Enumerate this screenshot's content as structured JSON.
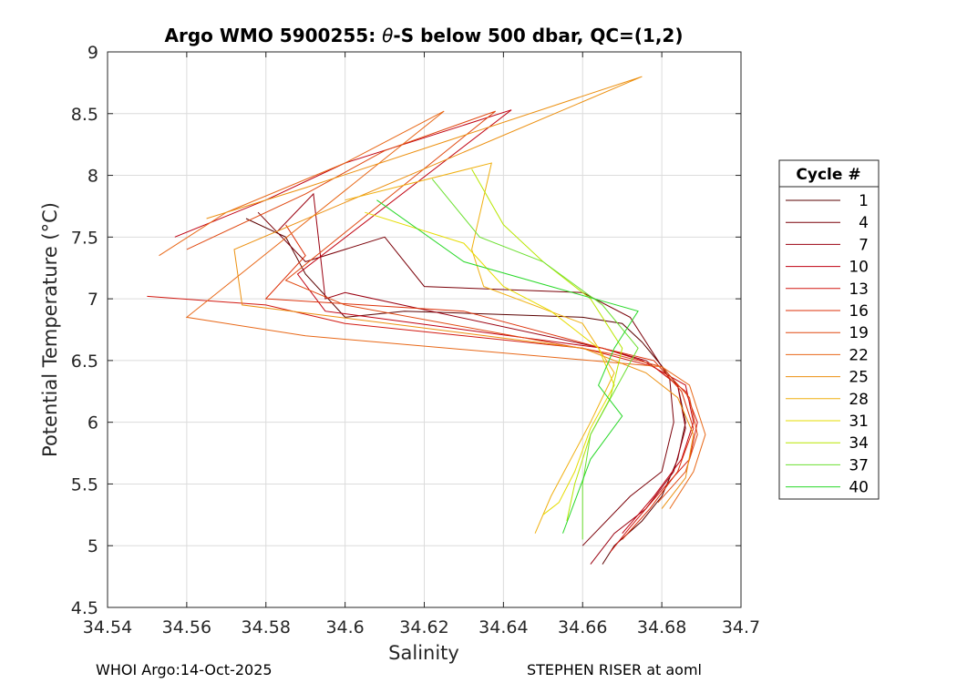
{
  "chart_data": {
    "type": "line",
    "title_prefix": "Argo WMO 5900255: ",
    "title_theta": "θ",
    "title_suffix": "-S below 500 dbar,  QC=(1,2)",
    "xlabel": "Salinity",
    "ylabel": "Potential Temperature (°C)",
    "xlim": [
      34.54,
      34.7
    ],
    "ylim": [
      4.5,
      9.0
    ],
    "xticks": [
      "34.54",
      "34.56",
      "34.58",
      "34.6",
      "34.62",
      "34.64",
      "34.66",
      "34.68",
      "34.7"
    ],
    "yticks": [
      "4.5",
      "5",
      "5.5",
      "6",
      "6.5",
      "7",
      "7.5",
      "8",
      "8.5",
      "9"
    ],
    "grid": true,
    "legend_title": "Cycle #",
    "legend_position": "right",
    "series": [
      {
        "name": "1",
        "color": "#5a0000",
        "x": [
          34.575,
          34.585,
          34.59,
          34.6,
          34.615,
          34.66,
          34.67,
          34.675,
          34.684,
          34.686,
          34.684,
          34.68,
          34.675,
          34.668,
          34.665
        ],
        "y": [
          7.65,
          7.5,
          7.2,
          6.85,
          6.9,
          6.85,
          6.8,
          6.65,
          6.3,
          6.0,
          5.7,
          5.4,
          5.2,
          5.0,
          4.85
        ]
      },
      {
        "name": "4",
        "color": "#7a0008",
        "x": [
          34.578,
          34.59,
          34.61,
          34.62,
          34.66,
          34.672,
          34.677,
          34.682,
          34.683,
          34.68,
          34.672,
          34.66
        ],
        "y": [
          7.7,
          7.3,
          7.5,
          7.1,
          7.05,
          6.85,
          6.6,
          6.35,
          6.0,
          5.6,
          5.4,
          5.0
        ]
      },
      {
        "name": "7",
        "color": "#9a0010",
        "x": [
          34.583,
          34.592,
          34.595,
          34.6,
          34.665,
          34.676,
          34.684,
          34.686,
          34.683,
          34.676,
          34.668,
          34.662
        ],
        "y": [
          7.55,
          7.85,
          7.0,
          7.05,
          6.6,
          6.5,
          6.3,
          5.95,
          5.6,
          5.3,
          5.1,
          4.85
        ]
      },
      {
        "name": "10",
        "color": "#c00010",
        "x": [
          34.557,
          34.58,
          34.6,
          34.642,
          34.588,
          34.595,
          34.665,
          34.675,
          34.686,
          34.688,
          34.685,
          34.678,
          34.67
        ],
        "y": [
          7.5,
          7.8,
          8.1,
          8.53,
          7.2,
          6.9,
          6.6,
          6.5,
          6.3,
          6.0,
          5.7,
          5.4,
          5.1
        ]
      },
      {
        "name": "13",
        "color": "#d21810",
        "x": [
          34.55,
          34.58,
          34.6,
          34.66,
          34.678,
          34.686,
          34.689,
          34.687,
          34.68,
          34.672,
          34.667
        ],
        "y": [
          7.02,
          6.95,
          6.8,
          6.6,
          6.45,
          6.25,
          6.0,
          5.7,
          5.45,
          5.15,
          4.95
        ]
      },
      {
        "name": "16",
        "color": "#dc3008",
        "x": [
          34.585,
          34.59,
          34.58,
          34.63,
          34.665,
          34.678,
          34.685,
          34.688,
          34.684,
          34.677,
          34.67
        ],
        "y": [
          7.6,
          7.35,
          7.0,
          6.9,
          6.6,
          6.5,
          6.25,
          5.95,
          5.6,
          5.3,
          5.05
        ]
      },
      {
        "name": "19",
        "color": "#e04810",
        "x": [
          34.56,
          34.59,
          34.61,
          34.638,
          34.585,
          34.6,
          34.668,
          34.68,
          34.687,
          34.689,
          34.686,
          34.679
        ],
        "y": [
          7.4,
          7.85,
          8.2,
          8.52,
          7.15,
          6.95,
          6.55,
          6.45,
          6.2,
          5.9,
          5.6,
          5.35
        ]
      },
      {
        "name": "22",
        "color": "#e86818",
        "x": [
          34.553,
          34.57,
          34.6,
          34.625,
          34.56,
          34.59,
          34.68,
          34.687,
          34.691,
          34.688,
          34.682
        ],
        "y": [
          7.35,
          7.7,
          8.1,
          8.52,
          6.85,
          6.7,
          6.45,
          6.3,
          5.9,
          5.6,
          5.3
        ]
      },
      {
        "name": "25",
        "color": "#ec9010",
        "x": [
          34.565,
          34.59,
          34.675,
          34.572,
          34.574,
          34.66,
          34.676,
          34.684,
          34.688,
          34.686,
          34.68
        ],
        "y": [
          7.65,
          7.9,
          8.8,
          7.4,
          6.95,
          6.6,
          6.4,
          6.2,
          5.9,
          5.55,
          5.3
        ]
      },
      {
        "name": "28",
        "color": "#f0b010",
        "x": [
          34.6,
          34.637,
          34.632,
          34.635,
          34.66,
          34.668,
          34.662,
          34.657,
          34.652,
          34.648
        ],
        "y": [
          7.8,
          8.1,
          7.4,
          7.1,
          6.8,
          6.4,
          6.0,
          5.7,
          5.4,
          5.1
        ]
      },
      {
        "name": "31",
        "color": "#e6dc00",
        "x": [
          34.605,
          34.63,
          34.64,
          34.652,
          34.664,
          34.668,
          34.662,
          34.658,
          34.654,
          34.65
        ],
        "y": [
          7.7,
          7.45,
          7.1,
          6.9,
          6.6,
          6.3,
          5.95,
          5.6,
          5.35,
          5.25
        ]
      },
      {
        "name": "34",
        "color": "#b8e600",
        "x": [
          34.632,
          34.64,
          34.65,
          34.662,
          34.67,
          34.667,
          34.662,
          34.658,
          34.656
        ],
        "y": [
          8.05,
          7.6,
          7.3,
          7.0,
          6.6,
          6.2,
          5.9,
          5.5,
          5.2
        ]
      },
      {
        "name": "37",
        "color": "#6ce030",
        "x": [
          34.622,
          34.634,
          34.65,
          34.665,
          34.674,
          34.668,
          34.662,
          34.66,
          34.66
        ],
        "y": [
          7.97,
          7.5,
          7.3,
          6.95,
          6.6,
          6.25,
          5.9,
          5.5,
          5.05
        ]
      },
      {
        "name": "40",
        "color": "#28d828",
        "x": [
          34.608,
          34.63,
          34.652,
          34.674,
          34.668,
          34.664,
          34.67,
          34.662,
          34.655
        ],
        "y": [
          7.8,
          7.3,
          7.1,
          6.9,
          6.6,
          6.3,
          6.05,
          5.7,
          5.1
        ]
      }
    ]
  },
  "footer_left": "WHOI Argo:14-Oct-2025",
  "footer_right": "STEPHEN RISER at aoml"
}
